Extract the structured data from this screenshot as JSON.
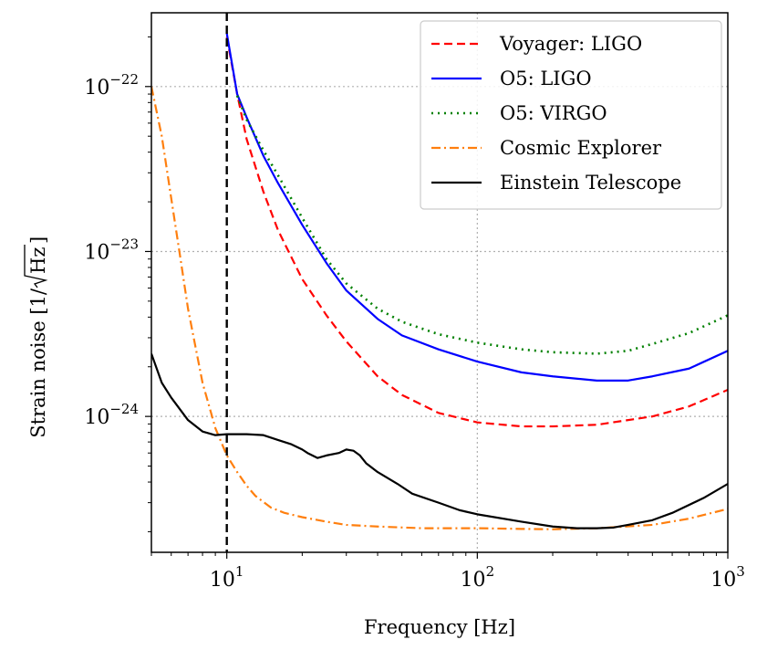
{
  "chart_data": {
    "type": "line",
    "title": "",
    "xlabel": "Frequency [Hz]",
    "ylabel_prefix": "Strain noise [1/",
    "ylabel_sqrt": "Hz",
    "ylabel_suffix": "]",
    "x_scale": "log",
    "y_scale": "log",
    "xlim": [
      5,
      1000
    ],
    "ylim": [
      1.5e-25,
      2.8e-22
    ],
    "x_ticks": [
      {
        "value": 10,
        "base": "10",
        "exp": "1"
      },
      {
        "value": 100,
        "base": "10",
        "exp": "2"
      },
      {
        "value": 1000,
        "base": "10",
        "exp": "3"
      }
    ],
    "y_ticks": [
      {
        "value": 1e-24,
        "base": "10",
        "exp": "−24"
      },
      {
        "value": 1e-23,
        "base": "10",
        "exp": "−23"
      },
      {
        "value": 1e-22,
        "base": "10",
        "exp": "−22"
      }
    ],
    "grid": true,
    "grid_lines": {
      "x": [
        100
      ],
      "y": [
        1e-24,
        1e-23,
        1e-22
      ]
    },
    "vline": {
      "x": 10,
      "style": "dashed",
      "color": "#000000"
    },
    "legend_position": "top-right",
    "series": [
      {
        "name": "Voyager: LIGO",
        "color": "#ff0000",
        "style": "dashed",
        "x": [
          10,
          11,
          12,
          14,
          16,
          20,
          25,
          30,
          40,
          50,
          70,
          100,
          150,
          200,
          300,
          500,
          700,
          1000
        ],
        "y": [
          2e-22,
          9e-23,
          4.8e-23,
          2.3e-23,
          1.35e-23,
          6.8e-24,
          4.1e-24,
          2.85e-24,
          1.75e-24,
          1.35e-24,
          1.05e-24,
          9.2e-25,
          8.7e-25,
          8.7e-25,
          8.9e-25,
          1e-24,
          1.15e-24,
          1.45e-24
        ]
      },
      {
        "name": "O5: LIGO",
        "color": "#0000ff",
        "style": "solid",
        "x": [
          10,
          11,
          12,
          14,
          16,
          20,
          25,
          30,
          40,
          50,
          70,
          100,
          150,
          200,
          300,
          400,
          500,
          700,
          1000
        ],
        "y": [
          2.1e-22,
          9e-23,
          6.5e-23,
          3.8e-23,
          2.6e-23,
          1.45e-23,
          8.5e-24,
          5.8e-24,
          3.9e-24,
          3.1e-24,
          2.55e-24,
          2.15e-24,
          1.85e-24,
          1.75e-24,
          1.65e-24,
          1.65e-24,
          1.75e-24,
          1.95e-24,
          2.5e-24
        ]
      },
      {
        "name": "O5: VIRGO",
        "color": "#008000",
        "style": "dotted",
        "x": [
          11,
          12,
          14,
          16,
          20,
          25,
          30,
          40,
          50,
          70,
          100,
          150,
          200,
          300,
          400,
          500,
          700,
          1000
        ],
        "y": [
          8.8e-23,
          6.3e-23,
          4.1e-23,
          2.9e-23,
          1.6e-23,
          9e-24,
          6.4e-24,
          4.5e-24,
          3.75e-24,
          3.15e-24,
          2.8e-24,
          2.55e-24,
          2.45e-24,
          2.4e-24,
          2.5e-24,
          2.75e-24,
          3.2e-24,
          4.1e-24
        ]
      },
      {
        "name": "Cosmic Explorer",
        "color": "#ff7f0e",
        "style": "dashdot",
        "x": [
          5,
          5.5,
          6,
          6.5,
          7,
          8,
          9,
          10,
          11,
          12,
          13,
          15,
          17,
          20,
          25,
          30,
          40,
          60,
          100,
          150,
          200,
          300,
          500,
          700,
          1000
        ],
        "y": [
          1e-22,
          5e-23,
          2.1e-23,
          9.5e-24,
          4.5e-24,
          1.6e-24,
          8.5e-25,
          5.8e-25,
          4.6e-25,
          3.8e-25,
          3.3e-25,
          2.8e-25,
          2.6e-25,
          2.45e-25,
          2.3e-25,
          2.2e-25,
          2.15e-25,
          2.1e-25,
          2.1e-25,
          2.08e-25,
          2.07e-25,
          2.1e-25,
          2.2e-25,
          2.4e-25,
          2.75e-25
        ]
      },
      {
        "name": "Einstein Telescope",
        "color": "#000000",
        "style": "solid",
        "x": [
          5,
          5.5,
          6,
          7,
          8,
          9,
          10,
          12,
          14,
          16,
          18,
          20,
          21,
          23,
          25,
          28,
          30,
          32,
          34,
          36,
          40,
          48,
          55,
          70,
          85,
          100,
          150,
          200,
          250,
          300,
          350,
          400,
          500,
          600,
          800,
          1000
        ],
        "y": [
          2.4e-24,
          1.6e-24,
          1.3e-24,
          9.5e-25,
          8.1e-25,
          7.7e-25,
          7.8e-25,
          7.8e-25,
          7.7e-25,
          7.2e-25,
          6.8e-25,
          6.3e-25,
          6e-25,
          5.6e-25,
          5.8e-25,
          6e-25,
          6.3e-25,
          6.2e-25,
          5.8e-25,
          5.2e-25,
          4.6e-25,
          3.9e-25,
          3.4e-25,
          3e-25,
          2.7e-25,
          2.55e-25,
          2.3e-25,
          2.15e-25,
          2.1e-25,
          2.1e-25,
          2.12e-25,
          2.2e-25,
          2.35e-25,
          2.6e-25,
          3.2e-25,
          3.9e-25
        ]
      }
    ]
  }
}
